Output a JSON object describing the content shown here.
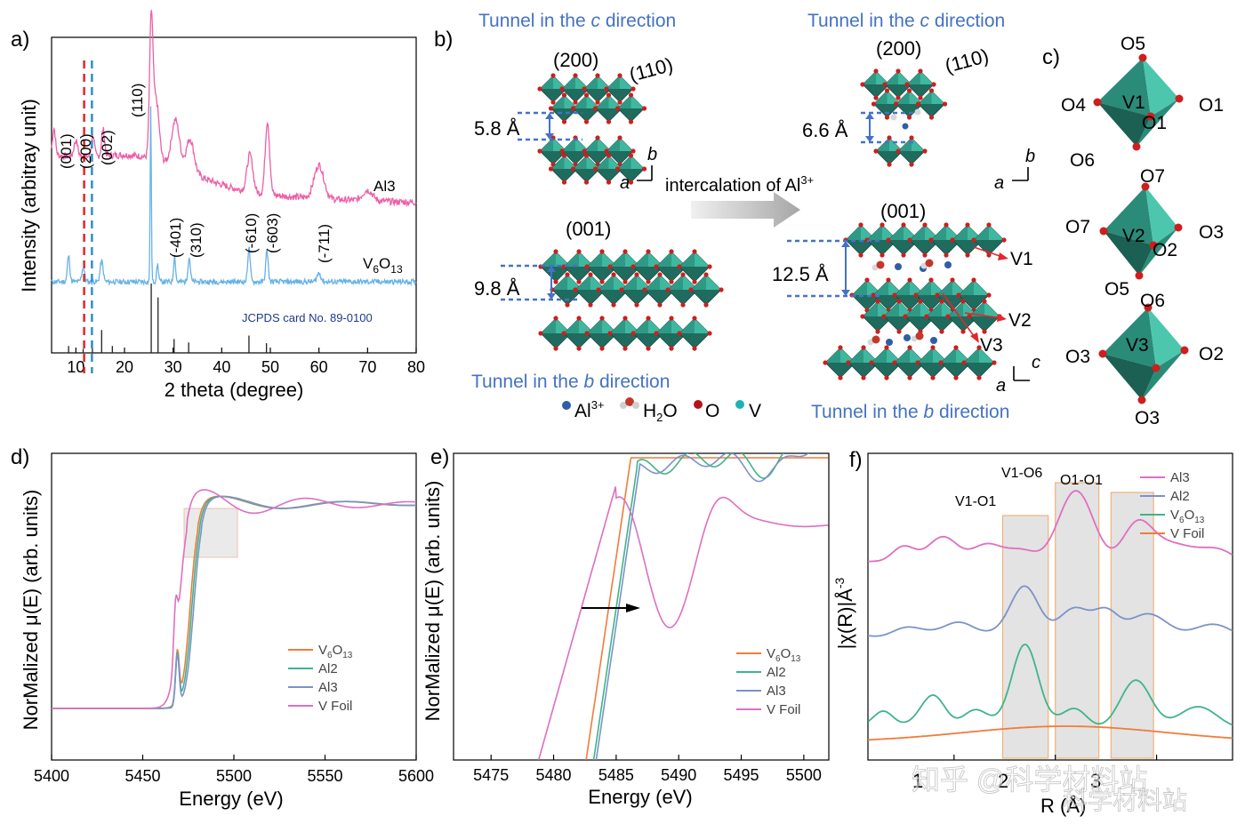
{
  "chart_data": [
    {
      "panel": "a)",
      "type": "line",
      "xlabel": "2 theta (degree)",
      "ylabel": "Intensity (arbitray unit)",
      "xlim": [
        5,
        80
      ],
      "xticks": [
        "10",
        "20",
        "30",
        "40",
        "50",
        "60",
        "70",
        "80"
      ],
      "series": [
        {
          "name": "Al3",
          "color": "#ee5fa7"
        },
        {
          "name": "V6O13",
          "color": "#66b2e8"
        }
      ],
      "series_labels": {
        "al3": "Al3",
        "v6o13": "V",
        "v6o13_sub1": "6",
        "v6o13_mid": "O",
        "v6o13_sub2": "13"
      },
      "peak_labels_al3": [
        "(001)",
        "(200)",
        "(002)",
        "(110)"
      ],
      "peak_labels_v6o13": [
        "(-401)",
        "(310)",
        "(-610)",
        "(-603)",
        "(-711)"
      ],
      "reference": "JCPDS card No. 89-0100",
      "reference_sticks": [
        [
          8.5,
          0.1
        ],
        [
          11.5,
          0.06
        ],
        [
          13.4,
          0.18
        ],
        [
          15.3,
          0.33
        ],
        [
          17.5,
          0.1
        ],
        [
          25.5,
          1.0
        ],
        [
          26.9,
          0.8
        ],
        [
          30.2,
          0.2
        ],
        [
          33.2,
          0.15
        ],
        [
          45.6,
          0.25
        ],
        [
          49.2,
          0.14
        ]
      ],
      "dashed_lines": [
        11.7,
        13.3
      ]
    },
    {
      "panel": "b)",
      "type": "diagram",
      "titles": {
        "top_left": "Tunnel in the ",
        "top_right": "Tunnel in the ",
        "c": "c",
        "b": "b",
        "direction": " direction",
        "bottom_left": "Tunnel in the ",
        "bottom_right": "Tunnel in the "
      },
      "planes": {
        "p200": "(200)",
        "p110": "(110)",
        "p001": "(001)"
      },
      "spacings": {
        "left_200": "5.8 Å",
        "right_200": "6.6 Å",
        "left_001": "9.8 Å",
        "right_001": "12.5 Å"
      },
      "arrow_text": "intercalation of Al",
      "arrow_text_sup": "3+",
      "sites": [
        "V1",
        "V2",
        "V3"
      ],
      "axes": {
        "a": "a",
        "b": "b",
        "c": "c"
      },
      "legend": {
        "al": "Al",
        "al_sup": "3+",
        "h2o_h": "H",
        "h2o_sub": "2",
        "h2o_o": "O",
        "o": "O",
        "v": "V"
      }
    },
    {
      "panel": "c)",
      "type": "diagram",
      "octahedra": [
        {
          "center": "V1",
          "labels": [
            "O5",
            "O4",
            "O1",
            "O1",
            "O6"
          ]
        },
        {
          "center": "V2",
          "labels": [
            "O7",
            "O7",
            "O3",
            "O2",
            "O5"
          ]
        },
        {
          "center": "V3",
          "labels": [
            "O6",
            "O3",
            "O2",
            "O3"
          ]
        }
      ]
    },
    {
      "panel": "d)",
      "type": "line",
      "xlabel": "Energy (eV)",
      "ylabel": "NorMalized μ(E) (arb. units)",
      "xlim": [
        5400,
        5600
      ],
      "xticks": [
        "5400",
        "5450",
        "5500",
        "5550",
        "5600"
      ],
      "series": [
        {
          "name": "V6O13",
          "color": "#f07c3b",
          "edge": 5476
        },
        {
          "name": "Al2",
          "color": "#3fb48a",
          "edge": 5477
        },
        {
          "name": "Al3",
          "color": "#7b93c8",
          "edge": 5478
        },
        {
          "name": "V Foil",
          "color": "#de6fc0",
          "edge": 5470
        }
      ],
      "legend_labels": {
        "v6o13": "V",
        "v6o13_sub1": "6",
        "v6o13_mid": "O",
        "v6o13_sub2": "13",
        "al2": "Al2",
        "al3": "Al3",
        "vfoil": "V Foil"
      }
    },
    {
      "panel": "e)",
      "type": "line",
      "xlabel": "Energy (eV)",
      "ylabel": "NorMalized μ(E) (arb. units)",
      "xlim": [
        5472,
        5502
      ],
      "xticks": [
        "5475",
        "5480",
        "5485",
        "5490",
        "5495",
        "5500"
      ],
      "series": [
        {
          "name": "V6O13",
          "color": "#f07c3b"
        },
        {
          "name": "Al2",
          "color": "#3fb48a"
        },
        {
          "name": "Al3",
          "color": "#7b93c8"
        },
        {
          "name": "V Foil",
          "color": "#de6fc0"
        }
      ],
      "legend_labels": {
        "v6o13": "V",
        "v6o13_sub1": "6",
        "v6o13_mid": "O",
        "v6o13_sub2": "13",
        "al2": "Al2",
        "al3": "Al3",
        "vfoil": "V Foil"
      }
    },
    {
      "panel": "f)",
      "type": "line",
      "xlabel": "R (Å)",
      "ylabel": "|χ(R)|Å",
      "ylabel_sup": "-3",
      "xticks": [
        "1",
        "2",
        "3"
      ],
      "bands": [
        "V1-O1",
        "V1-O6",
        "O1-O1"
      ],
      "series": [
        {
          "name": "Al3",
          "color": "#de6fc0"
        },
        {
          "name": "Al2",
          "color": "#7b93c8"
        },
        {
          "name": "V6O13",
          "color": "#3fb48a"
        },
        {
          "name": "V Foil",
          "color": "#f07c3b"
        }
      ],
      "legend_labels": {
        "al3": "Al3",
        "al2": "Al2",
        "v6o13": "V",
        "v6o13_sub1": "6",
        "v6o13_mid": "O",
        "v6o13_sub2": "13",
        "vfoil": "V Foil"
      }
    }
  ],
  "watermark": {
    "line1": "知乎 @科学材料站",
    "line2": "科学材料站"
  }
}
